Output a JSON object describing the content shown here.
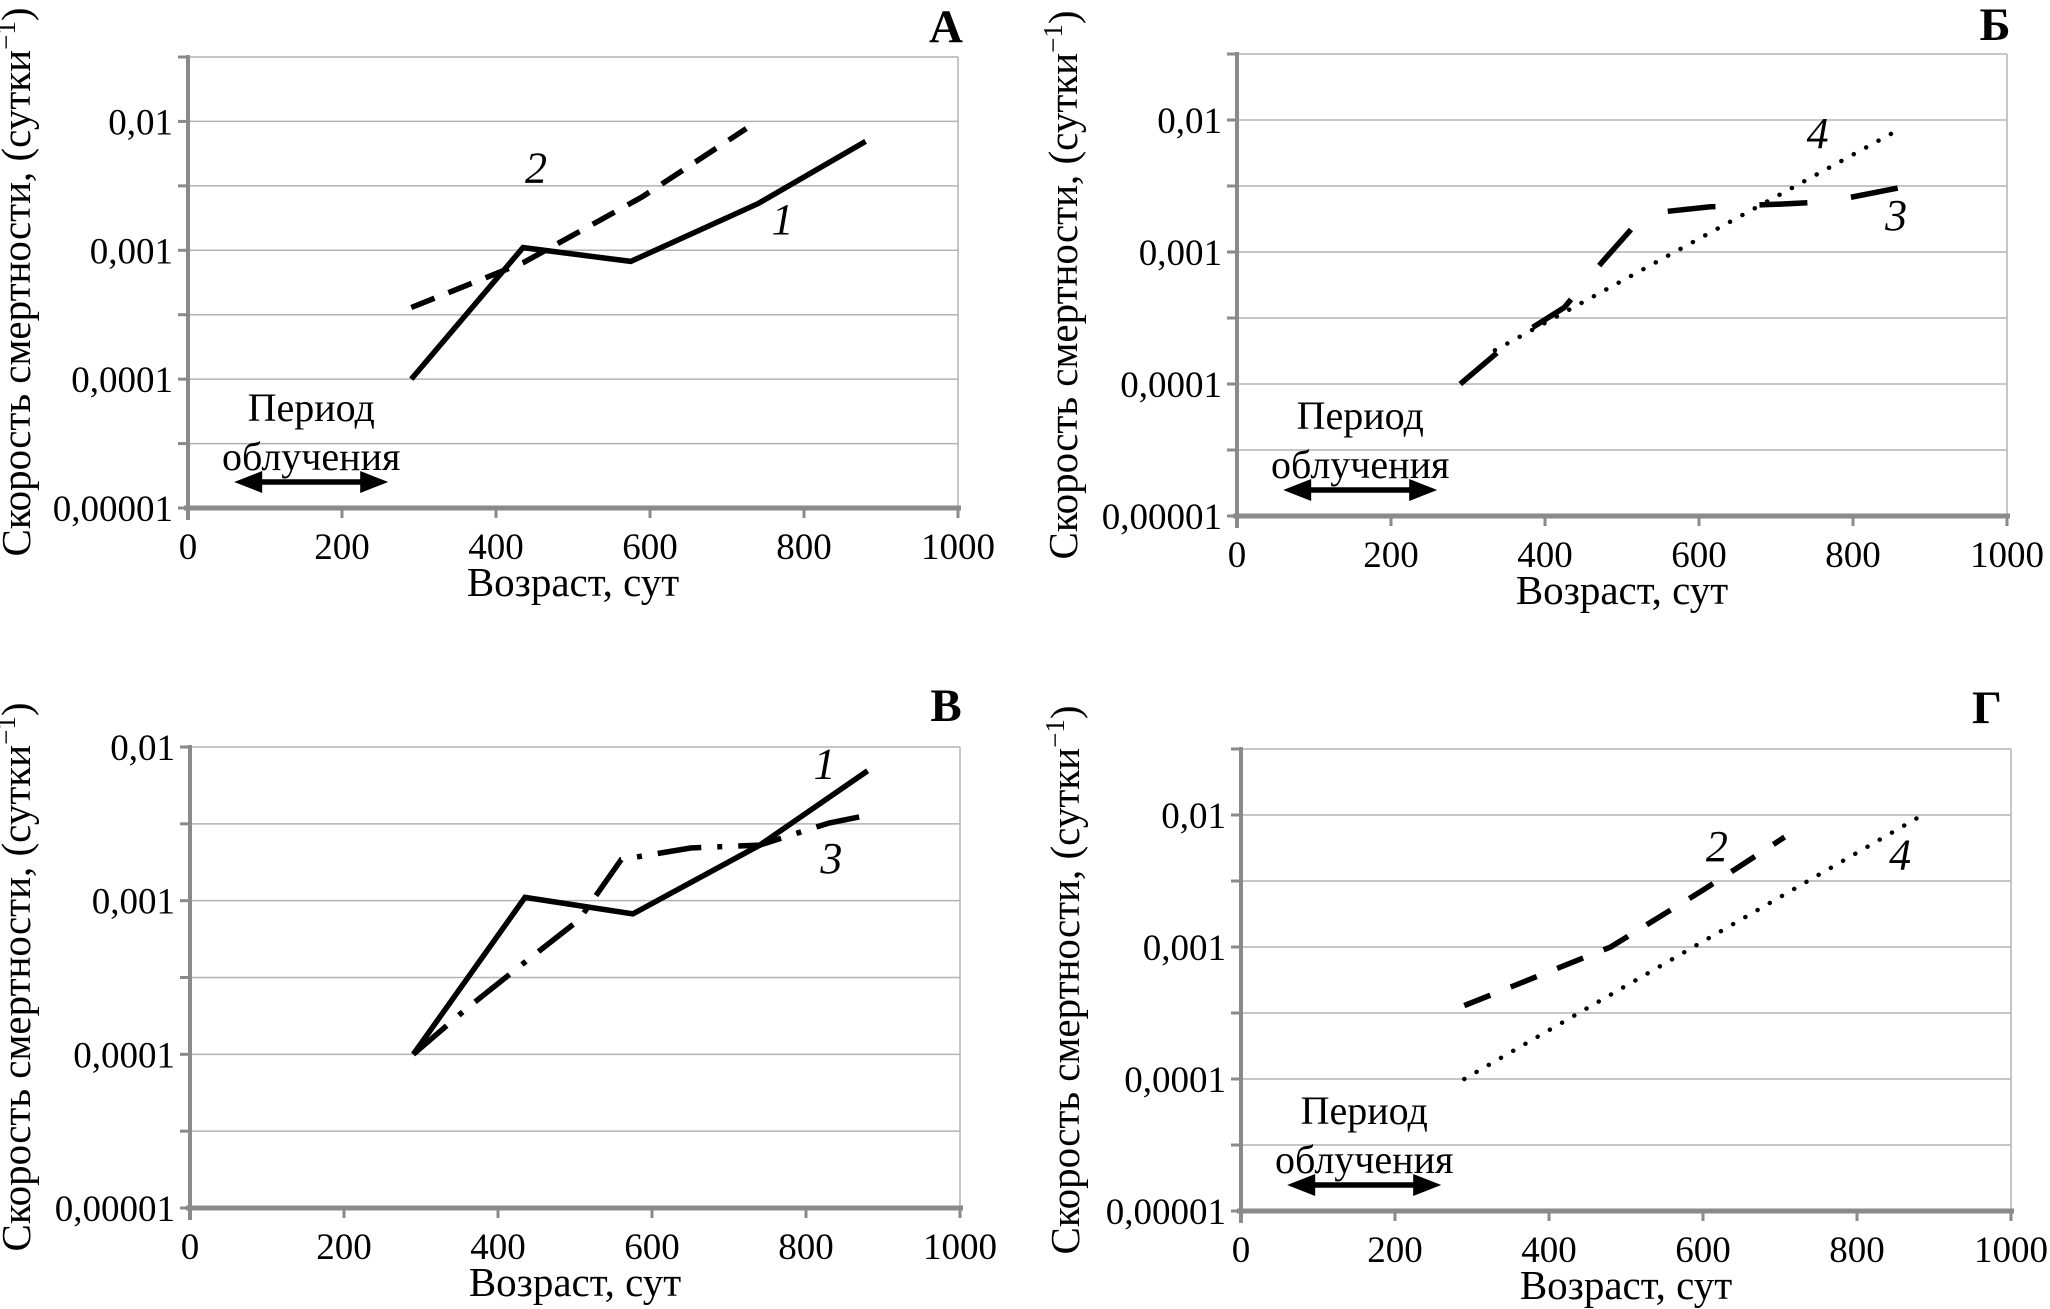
{
  "colors": {
    "background": "#ffffff",
    "line": "#000000",
    "axis": "#8a8a8a",
    "gridline": "#b3b3b3",
    "text": "#000000"
  },
  "chart_data": [
    {
      "panel": "А",
      "type": "line",
      "xlabel": "Возраст, сут",
      "ylabel": "Скорость смертности, (сутки⁻¹)",
      "ylabel_parts": {
        "main": "Скорость смертности, (сутки",
        "sup": "−1",
        "close": ")"
      },
      "xlim": [
        0,
        1000
      ],
      "ylog_range": [
        -5,
        -1.5
      ],
      "x_ticks": [
        "0",
        "200",
        "400",
        "600",
        "800",
        "1000"
      ],
      "y_ticks": [
        {
          "label": "0,01",
          "value": 0.01
        },
        {
          "label": "0,001",
          "value": 0.001
        },
        {
          "label": "0,0001",
          "value": 0.0001
        },
        {
          "label": "0,00001",
          "value": 1e-05
        }
      ],
      "grid": "horizontal half-decade, log scale",
      "series": [
        {
          "name": "1",
          "style": "solid",
          "points": [
            [
              290,
              0.0001
            ],
            [
              435,
              0.00105
            ],
            [
              575,
              0.00082
            ],
            [
              740,
              0.0023
            ],
            [
              880,
              0.007
            ]
          ],
          "label": {
            "text": "1",
            "x": 772,
            "y": 0.00175
          }
        },
        {
          "name": "2",
          "style": "dashed",
          "points": [
            [
              290,
              0.00036
            ],
            [
              435,
              0.0008
            ],
            [
              590,
              0.0026
            ],
            [
              725,
              0.0088
            ]
          ],
          "label": {
            "text": "2",
            "x": 452,
            "y": 0.0044
          }
        }
      ],
      "period_label": {
        "line1": "Период",
        "line2": "облучения",
        "arrow_x_from": 60,
        "arrow_x_to": 260
      }
    },
    {
      "panel": "Б",
      "type": "line",
      "xlabel": "Возраст, сут",
      "ylabel": "Скорость смертности, (сутки⁻¹)",
      "ylabel_parts": {
        "main": "Скорость смертности, (сутки",
        "sup": "−1",
        "close": ")"
      },
      "xlim": [
        0,
        1000
      ],
      "ylog_range": [
        -5,
        -1.5
      ],
      "x_ticks": [
        "0",
        "200",
        "400",
        "600",
        "800",
        "1000"
      ],
      "y_ticks": [
        {
          "label": "0,01",
          "value": 0.01
        },
        {
          "label": "0,001",
          "value": 0.001
        },
        {
          "label": "0,0001",
          "value": 0.0001
        },
        {
          "label": "0,00001",
          "value": 1e-05
        }
      ],
      "grid": "horizontal half-decade, log scale",
      "series": [
        {
          "name": "3",
          "style": "long-dash",
          "points": [
            [
              290,
              0.0001
            ],
            [
              355,
              0.00021
            ],
            [
              425,
              0.00038
            ],
            [
              475,
              0.00085
            ],
            [
              530,
              0.00195
            ],
            [
              615,
              0.0022
            ],
            [
              700,
              0.0023
            ],
            [
              767,
              0.0024
            ],
            [
              858,
              0.00305
            ]
          ],
          "label": {
            "text": "3",
            "x": 856,
            "y": 0.0019
          }
        },
        {
          "name": "4",
          "style": "dotted",
          "points": [
            [
              335,
              0.00018
            ],
            [
              865,
              0.0088
            ]
          ],
          "label": {
            "text": "4",
            "x": 754,
            "y": 0.008
          }
        }
      ],
      "period_label": {
        "line1": "Период",
        "line2": "облучения",
        "arrow_x_from": 60,
        "arrow_x_to": 260
      }
    },
    {
      "panel": "В",
      "type": "line",
      "xlabel": "Возраст, сут",
      "ylabel": "Скорость смертности, (сутки⁻¹)",
      "ylabel_parts": {
        "main": "Скорость смертности, (сутки",
        "sup": "−1",
        "close": ")"
      },
      "xlim": [
        0,
        1000
      ],
      "ylog_range": [
        -5,
        -2
      ],
      "x_ticks": [
        "0",
        "200",
        "400",
        "600",
        "800",
        "1000"
      ],
      "y_ticks": [
        {
          "label": "0,01",
          "value": 0.01
        },
        {
          "label": "0,001",
          "value": 0.001
        },
        {
          "label": "0,0001",
          "value": 0.0001
        },
        {
          "label": "0,00001",
          "value": 1e-05
        }
      ],
      "grid": "horizontal half-decade, log scale",
      "series": [
        {
          "name": "1",
          "style": "solid",
          "points": [
            [
              290,
              0.0001
            ],
            [
              435,
              0.00105
            ],
            [
              575,
              0.00082
            ],
            [
              740,
              0.0023
            ],
            [
              880,
              0.007
            ]
          ],
          "label": {
            "text": "1",
            "x": 824,
            "y": 0.0078
          }
        },
        {
          "name": "3",
          "style": "dash-dot",
          "points": [
            [
              290,
              0.0001
            ],
            [
              360,
              0.0002
            ],
            [
              430,
              0.00038
            ],
            [
              505,
              0.00075
            ],
            [
              560,
              0.00185
            ],
            [
              650,
              0.0022
            ],
            [
              740,
              0.0023
            ],
            [
              830,
              0.0032
            ],
            [
              880,
              0.0036
            ]
          ],
          "label": {
            "text": "3",
            "x": 833,
            "y": 0.0019
          }
        }
      ],
      "period_label": null
    },
    {
      "panel": "Г",
      "type": "line",
      "xlabel": "Возраст, сут",
      "ylabel": "Скорость смертности, (сутки⁻¹)",
      "ylabel_parts": {
        "main": "Скорость смертности, (сутки",
        "sup": "−1",
        "close": ")"
      },
      "xlim": [
        0,
        1000
      ],
      "ylog_range": [
        -5,
        -1.5
      ],
      "x_ticks": [
        "0",
        "200",
        "400",
        "600",
        "800",
        "1000"
      ],
      "y_ticks": [
        {
          "label": "0,01",
          "value": 0.01
        },
        {
          "label": "0,001",
          "value": 0.001
        },
        {
          "label": "0,0001",
          "value": 0.0001
        },
        {
          "label": "0,00001",
          "value": 1e-05
        }
      ],
      "grid": "horizontal half-decade, log scale",
      "series": [
        {
          "name": "2",
          "style": "dashed-long",
          "points": [
            [
              290,
              0.00036
            ],
            [
              480,
              0.001
            ],
            [
              600,
              0.0027
            ],
            [
              706,
              0.0068
            ]
          ],
          "label": {
            "text": "2",
            "x": 618,
            "y": 0.0058
          }
        },
        {
          "name": "4",
          "style": "dotted",
          "points": [
            [
              290,
              0.0001
            ],
            [
              885,
              0.01
            ]
          ],
          "label": {
            "text": "4",
            "x": 856,
            "y": 0.005
          }
        }
      ],
      "period_label": {
        "line1": "Период",
        "line2": "облучения",
        "arrow_x_from": 60,
        "arrow_x_to": 260
      }
    }
  ]
}
